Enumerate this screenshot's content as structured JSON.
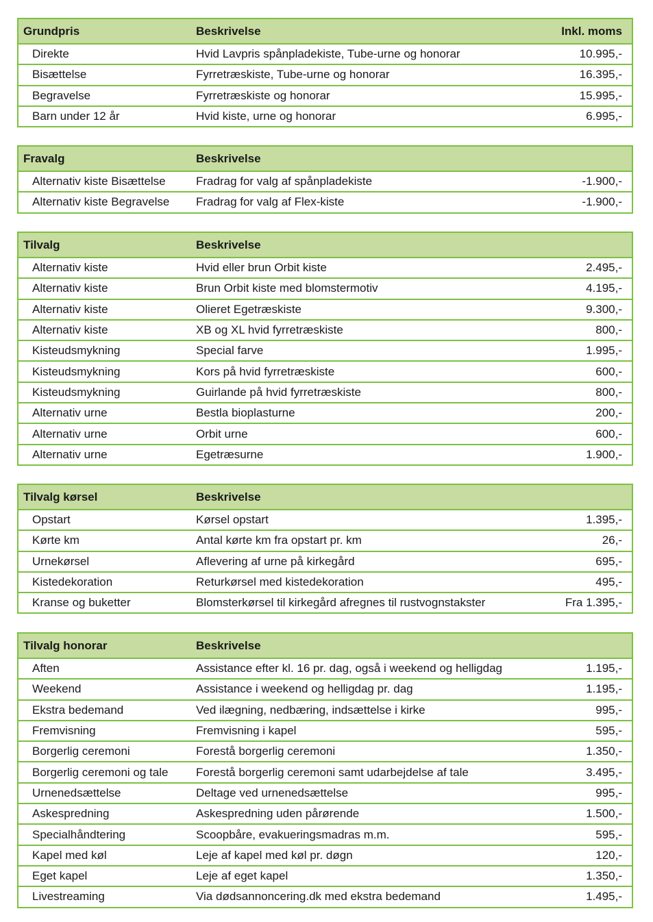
{
  "tables": [
    {
      "header": [
        "Grundpris",
        "Beskrivelse",
        "Inkl. moms"
      ],
      "rows": [
        [
          "Direkte",
          "Hvid Lavpris spånpladekiste, Tube-urne og honorar",
          "10.995,-"
        ],
        [
          "Bisættelse",
          "Fyrretræskiste, Tube-urne og honorar",
          "16.395,-"
        ],
        [
          "Begravelse",
          "Fyrretræskiste og honorar",
          "15.995,-"
        ],
        [
          "Barn under 12 år",
          "Hvid kiste, urne og honorar",
          "6.995,-"
        ]
      ]
    },
    {
      "header": [
        "Fravalg",
        "Beskrivelse",
        ""
      ],
      "rows": [
        [
          "Alternativ kiste Bisættelse",
          "Fradrag for valg af spånpladekiste",
          "-1.900,-"
        ],
        [
          "Alternativ kiste Begravelse",
          "Fradrag for valg af Flex-kiste",
          "-1.900,-"
        ]
      ]
    },
    {
      "header": [
        "Tilvalg",
        "Beskrivelse",
        ""
      ],
      "rows": [
        [
          "Alternativ kiste",
          "Hvid eller brun Orbit kiste",
          "2.495,-"
        ],
        [
          "Alternativ kiste",
          "Brun Orbit kiste med blomstermotiv",
          "4.195,-"
        ],
        [
          "Alternativ kiste",
          "Olieret Egetræskiste",
          "9.300,-"
        ],
        [
          "Alternativ kiste",
          "XB og XL hvid fyrretræskiste",
          "800,-"
        ],
        [
          "Kisteudsmykning",
          "Special farve",
          "1.995,-"
        ],
        [
          "Kisteudsmykning",
          "Kors på hvid fyrretræskiste",
          "600,-"
        ],
        [
          "Kisteudsmykning",
          "Guirlande på hvid fyrretræskiste",
          "800,-"
        ],
        [
          "Alternativ urne",
          "Bestla bioplasturne",
          "200,-"
        ],
        [
          "Alternativ urne",
          "Orbit urne",
          "600,-"
        ],
        [
          "Alternativ urne",
          "Egetræsurne",
          "1.900,-"
        ]
      ]
    },
    {
      "header": [
        "Tilvalg kørsel",
        "Beskrivelse",
        ""
      ],
      "rows": [
        [
          "Opstart",
          "Kørsel opstart",
          "1.395,-"
        ],
        [
          "Kørte km",
          "Antal kørte km fra opstart pr. km",
          "26,-"
        ],
        [
          "Urnekørsel",
          "Aflevering af urne på kirkegård",
          "695,-"
        ],
        [
          "Kistedekoration",
          "Returkørsel med kistedekoration",
          "495,-"
        ],
        [
          "Kranse og buketter",
          "Blomsterkørsel til kirkegård afregnes til rustvognstakster",
          "Fra 1.395,-"
        ]
      ]
    },
    {
      "header": [
        "Tilvalg honorar",
        "Beskrivelse",
        ""
      ],
      "rows": [
        [
          "Aften",
          "Assistance efter kl. 16 pr. dag, også i weekend og helligdag",
          "1.195,-"
        ],
        [
          "Weekend",
          "Assistance i weekend og helligdag pr. dag",
          "1.195,-"
        ],
        [
          "Ekstra bedemand",
          "Ved ilægning, nedbæring, indsættelse i kirke",
          "995,-"
        ],
        [
          "Fremvisning",
          "Fremvisning i kapel",
          "595,-"
        ],
        [
          "Borgerlig ceremoni",
          "Forestå borgerlig ceremoni",
          "1.350,-"
        ],
        [
          "Borgerlig ceremoni og tale",
          "Forestå borgerlig ceremoni samt udarbejdelse af tale",
          "3.495,-"
        ],
        [
          "Urnenedsættelse",
          "Deltage ved urnenedsættelse",
          "995,-"
        ],
        [
          "Askespredning",
          "Askespredning uden pårørende",
          "1.500,-"
        ],
        [
          "Specialhåndtering",
          "Scoopbåre, evakueringsmadras m.m.",
          "595,-"
        ],
        [
          "Kapel med køl",
          "Leje af kapel med køl pr. døgn",
          "120,-"
        ],
        [
          "Eget kapel",
          "Leje af eget kapel",
          "1.350,-"
        ],
        [
          "Livestreaming",
          "Via dødsannoncering.dk med ekstra bedemand",
          "1.495,-"
        ]
      ]
    }
  ],
  "colors": {
    "header_bg": "#c6dca0",
    "border": "#7cc142"
  }
}
